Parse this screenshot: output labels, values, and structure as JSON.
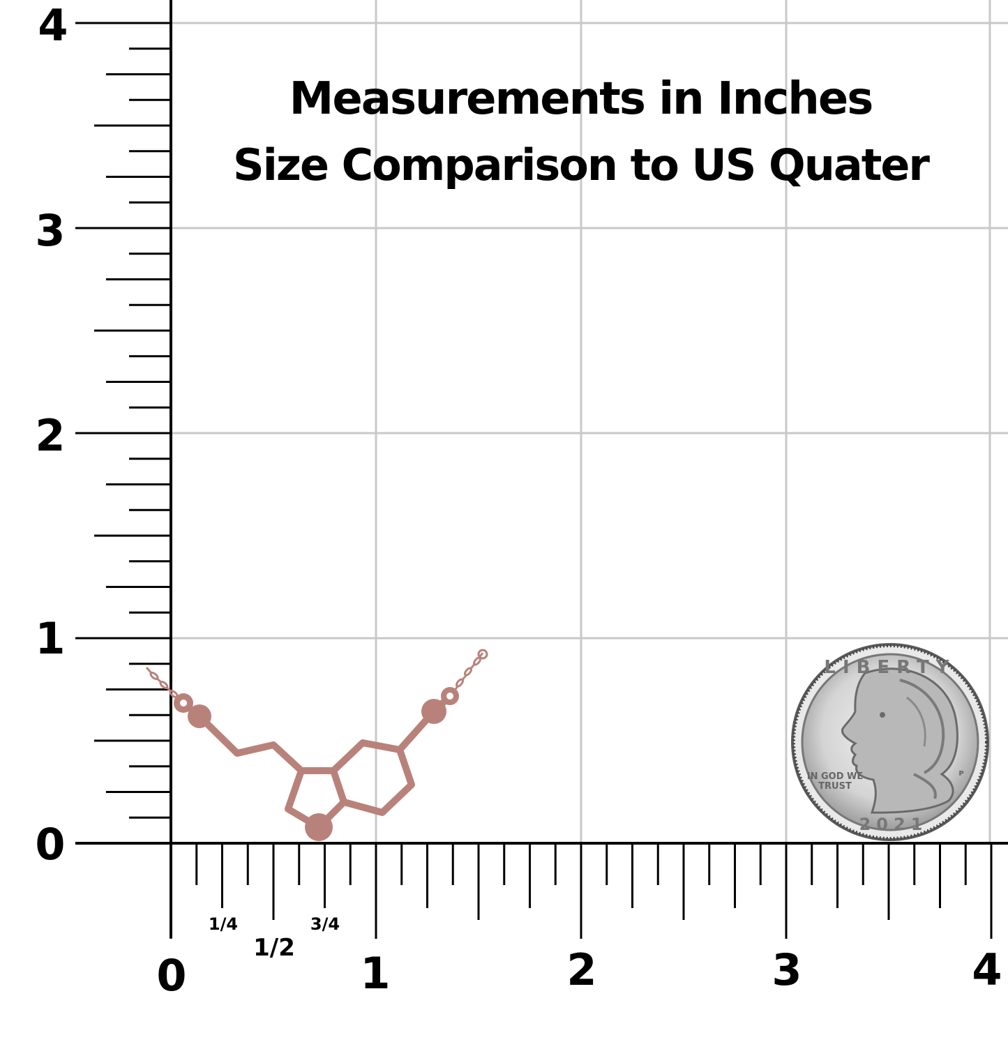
{
  "title": {
    "line1": "Measurements in Inches",
    "line2": "Size Comparison to US Quater"
  },
  "y_axis": {
    "labels": [
      "0",
      "1",
      "2",
      "3",
      "4"
    ]
  },
  "x_axis": {
    "labels": [
      "0",
      "1",
      "2",
      "3",
      "4"
    ],
    "fraction_labels": [
      "1/4",
      "1/2",
      "3/4"
    ]
  },
  "coin": {
    "top_text": "LIBERTY",
    "motto_line1": "IN GOD WE",
    "motto_line2": "TRUST",
    "year": "2021",
    "mint_mark": "P"
  },
  "colors": {
    "grid": "#c8c8c8",
    "axis": "#000000",
    "pendant": "#b8827a",
    "coin": "#c9c9c9"
  },
  "icons": {
    "pendant": "serotonin-molecule-necklace",
    "coin": "us-quarter-coin"
  }
}
